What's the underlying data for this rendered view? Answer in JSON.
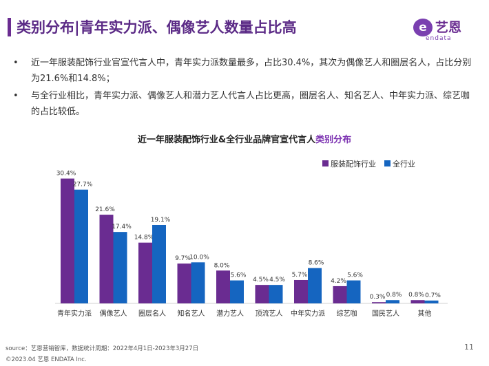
{
  "header": {
    "title": "类别分布|青年实力派、偶像艺人数量占比高",
    "logo_cn": "艺恩",
    "logo_en": "endata",
    "logo_mark": "e"
  },
  "bullets": [
    "近一年服装配饰行业官宣代言人中，青年实力派数量最多，占比30.4%，其次为偶像艺人和圈层名人，占比分别为21.6%和14.8%；",
    "与全行业相比，青年实力派、偶像艺人和潜力艺人代言人占比更高，圈层名人、知名艺人、中年实力派、综艺咖的占比较低。"
  ],
  "bullet_symbol": "•",
  "chart_title": {
    "prefix": "近一年服装配饰行业&全行业品牌官宣代言人",
    "highlight": "类别分布"
  },
  "chart_data": {
    "type": "bar",
    "title": "近一年服装配饰行业&全行业品牌官宣代言人类别分布",
    "categories": [
      "青年实力派",
      "偶像艺人",
      "圈层名人",
      "知名艺人",
      "潜力艺人",
      "顶流艺人",
      "中年实力派",
      "综艺咖",
      "国民艺人",
      "其他"
    ],
    "series": [
      {
        "name": "服装配饰行业",
        "color": "#6a2c91",
        "values": [
          30.4,
          21.6,
          14.8,
          9.7,
          8.0,
          4.5,
          5.7,
          4.2,
          0.3,
          0.8
        ]
      },
      {
        "name": "全行业",
        "color": "#1565c0",
        "values": [
          27.7,
          17.4,
          19.1,
          10.0,
          5.6,
          4.5,
          8.6,
          5.6,
          0.8,
          0.7
        ]
      }
    ],
    "value_suffix": "%",
    "ylim": [
      0,
      32
    ],
    "grid": false,
    "legend_position": "top-right"
  },
  "footer": {
    "source": "source：艺恩营销智库，数据统计周期：2022年4月1日-2023年3月27日",
    "copyright": "©2023.04 艺恩 ENDATA Inc.",
    "page_number": "11"
  }
}
